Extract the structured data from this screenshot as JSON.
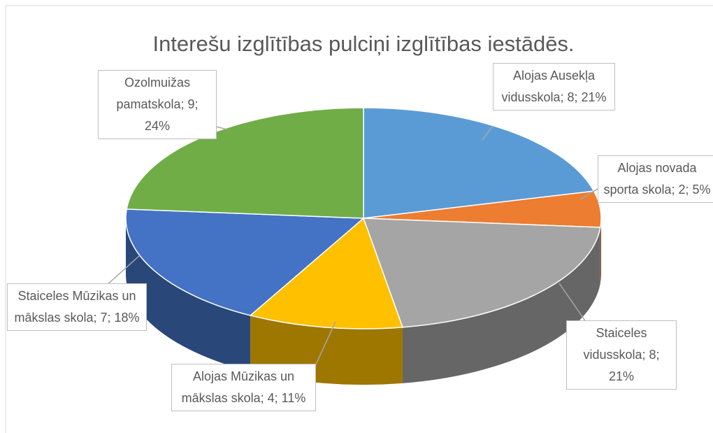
{
  "chart_data": {
    "type": "pie3d",
    "title": "Interešu izglītības pulciņi izglītības iestādēs.",
    "labels": [
      "Alojas Ausekļa vidusskola; 8; 21%",
      "Alojas novada sporta skola; 2; 5%",
      "Staiceles vidusskola; 8; 21%",
      "Alojas Mūzikas un mākslas skola; 4; 11%",
      "Staiceles Mūzikas un mākslas skola; 7; 18%",
      "Ozolmuižas pamatskola; 9; 24%"
    ],
    "values": [
      8,
      2,
      8,
      4,
      7,
      9
    ],
    "colors": [
      "#5b9bd5",
      "#ed7d31",
      "#a5a5a5",
      "#ffc000",
      "#4472c4",
      "#70ad47"
    ]
  }
}
